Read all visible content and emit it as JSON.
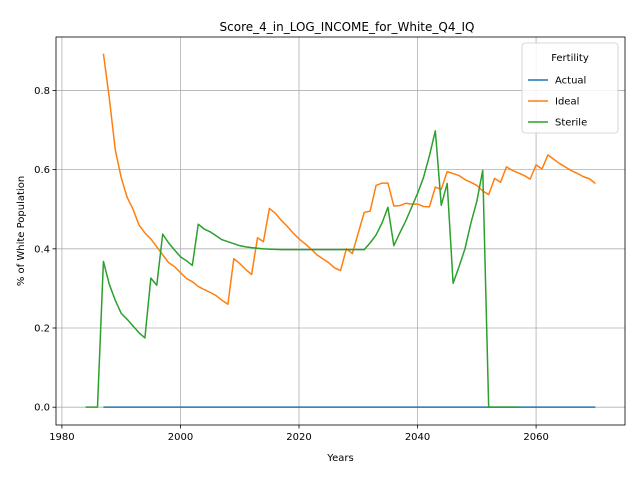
{
  "chart_data": {
    "type": "line",
    "title": "Score_4_in_LOG_INCOME_for_White_Q4_IQ",
    "xlabel": "Years",
    "ylabel": "% of White Population",
    "xlim": [
      1979,
      2075
    ],
    "ylim": [
      -0.045,
      0.935
    ],
    "xticks": [
      1980,
      2000,
      2020,
      2040,
      2060
    ],
    "yticks": [
      0.0,
      0.2,
      0.4,
      0.6,
      0.8
    ],
    "xtick_labels": [
      "1980",
      "2000",
      "2020",
      "2040",
      "2060"
    ],
    "ytick_labels": [
      "0.0",
      "0.2",
      "0.4",
      "0.6",
      "0.8"
    ],
    "grid": true,
    "legend": {
      "title": "Fertility",
      "placement": "top-right"
    },
    "series": [
      {
        "name": "Actual",
        "color": "#1f77b4",
        "points": [
          [
            1987,
            0.0
          ],
          [
            2070,
            0.0
          ]
        ]
      },
      {
        "name": "Ideal",
        "color": "#ff7f0e",
        "points": [
          [
            1987,
            0.893
          ],
          [
            1988,
            0.78
          ],
          [
            1989,
            0.65
          ],
          [
            1990,
            0.58
          ],
          [
            1991,
            0.53
          ],
          [
            1992,
            0.5
          ],
          [
            1993,
            0.46
          ],
          [
            1994,
            0.44
          ],
          [
            1995,
            0.425
          ],
          [
            1996,
            0.405
          ],
          [
            1997,
            0.385
          ],
          [
            1998,
            0.365
          ],
          [
            1999,
            0.355
          ],
          [
            2000,
            0.34
          ],
          [
            2001,
            0.325
          ],
          [
            2002,
            0.317
          ],
          [
            2003,
            0.305
          ],
          [
            2004,
            0.297
          ],
          [
            2005,
            0.29
          ],
          [
            2006,
            0.282
          ],
          [
            2007,
            0.27
          ],
          [
            2008,
            0.26
          ],
          [
            2009,
            0.375
          ],
          [
            2010,
            0.363
          ],
          [
            2011,
            0.348
          ],
          [
            2012,
            0.335
          ],
          [
            2013,
            0.428
          ],
          [
            2014,
            0.418
          ],
          [
            2015,
            0.502
          ],
          [
            2016,
            0.49
          ],
          [
            2017,
            0.472
          ],
          [
            2018,
            0.457
          ],
          [
            2019,
            0.44
          ],
          [
            2020,
            0.425
          ],
          [
            2021,
            0.413
          ],
          [
            2022,
            0.4
          ],
          [
            2023,
            0.385
          ],
          [
            2024,
            0.375
          ],
          [
            2025,
            0.365
          ],
          [
            2026,
            0.352
          ],
          [
            2027,
            0.345
          ],
          [
            2028,
            0.4
          ],
          [
            2029,
            0.388
          ],
          [
            2030,
            0.44
          ],
          [
            2031,
            0.492
          ],
          [
            2032,
            0.495
          ],
          [
            2033,
            0.56
          ],
          [
            2034,
            0.566
          ],
          [
            2035,
            0.566
          ],
          [
            2036,
            0.508
          ],
          [
            2037,
            0.509
          ],
          [
            2038,
            0.515
          ],
          [
            2039,
            0.513
          ],
          [
            2040,
            0.513
          ],
          [
            2041,
            0.507
          ],
          [
            2042,
            0.506
          ],
          [
            2043,
            0.556
          ],
          [
            2044,
            0.55
          ],
          [
            2045,
            0.595
          ],
          [
            2046,
            0.59
          ],
          [
            2047,
            0.585
          ],
          [
            2048,
            0.575
          ],
          [
            2049,
            0.568
          ],
          [
            2050,
            0.56
          ],
          [
            2051,
            0.546
          ],
          [
            2052,
            0.537
          ],
          [
            2053,
            0.578
          ],
          [
            2054,
            0.568
          ],
          [
            2055,
            0.607
          ],
          [
            2056,
            0.598
          ],
          [
            2057,
            0.592
          ],
          [
            2058,
            0.585
          ],
          [
            2059,
            0.576
          ],
          [
            2060,
            0.612
          ],
          [
            2061,
            0.602
          ],
          [
            2062,
            0.637
          ],
          [
            2063,
            0.626
          ],
          [
            2064,
            0.615
          ],
          [
            2065,
            0.606
          ],
          [
            2066,
            0.597
          ],
          [
            2067,
            0.59
          ],
          [
            2068,
            0.582
          ],
          [
            2069,
            0.577
          ],
          [
            2070,
            0.565
          ]
        ]
      },
      {
        "name": "Sterile",
        "color": "#2ca02c",
        "points": [
          [
            1984,
            0.0
          ],
          [
            1986,
            0.0
          ],
          [
            1987,
            0.368
          ],
          [
            1988,
            0.31
          ],
          [
            1989,
            0.27
          ],
          [
            1990,
            0.237
          ],
          [
            1991,
            0.222
          ],
          [
            1992,
            0.205
          ],
          [
            1993,
            0.188
          ],
          [
            1994,
            0.175
          ],
          [
            1995,
            0.326
          ],
          [
            1996,
            0.308
          ],
          [
            1997,
            0.437
          ],
          [
            1998,
            0.415
          ],
          [
            1999,
            0.397
          ],
          [
            2000,
            0.38
          ],
          [
            2001,
            0.37
          ],
          [
            2002,
            0.358
          ],
          [
            2003,
            0.462
          ],
          [
            2004,
            0.45
          ],
          [
            2005,
            0.443
          ],
          [
            2006,
            0.433
          ],
          [
            2007,
            0.423
          ],
          [
            2008,
            0.418
          ],
          [
            2009,
            0.413
          ],
          [
            2010,
            0.408
          ],
          [
            2011,
            0.405
          ],
          [
            2012,
            0.403
          ],
          [
            2014,
            0.4
          ],
          [
            2017,
            0.398
          ],
          [
            2020,
            0.398
          ],
          [
            2025,
            0.398
          ],
          [
            2030,
            0.398
          ],
          [
            2031,
            0.398
          ],
          [
            2032,
            0.415
          ],
          [
            2033,
            0.435
          ],
          [
            2034,
            0.465
          ],
          [
            2035,
            0.505
          ],
          [
            2036,
            0.408
          ],
          [
            2037,
            0.44
          ],
          [
            2038,
            0.47
          ],
          [
            2039,
            0.505
          ],
          [
            2040,
            0.54
          ],
          [
            2041,
            0.58
          ],
          [
            2042,
            0.635
          ],
          [
            2043,
            0.698
          ],
          [
            2044,
            0.51
          ],
          [
            2045,
            0.565
          ],
          [
            2046,
            0.313
          ],
          [
            2047,
            0.355
          ],
          [
            2048,
            0.4
          ],
          [
            2049,
            0.465
          ],
          [
            2050,
            0.52
          ],
          [
            2051,
            0.598
          ],
          [
            2052,
            0.0
          ],
          [
            2057,
            0.0
          ]
        ]
      }
    ]
  }
}
